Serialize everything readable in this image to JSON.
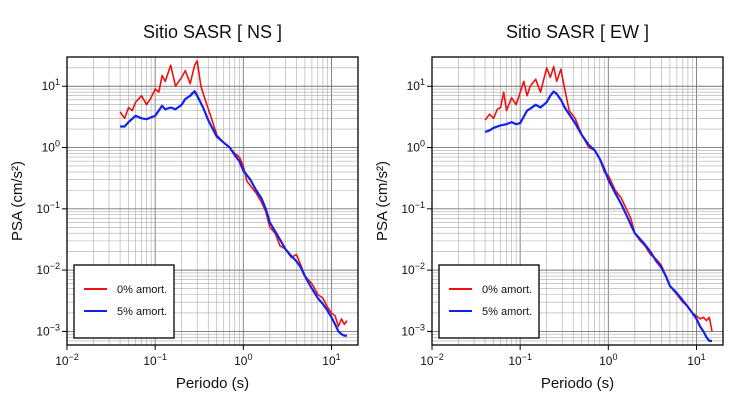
{
  "chart_data": [
    {
      "type": "line",
      "title": "Sitio SASR [ NS ]",
      "xlabel": "Periodo (s)",
      "ylabel": "PSA (cm/s²)",
      "x_scale": "log",
      "y_scale": "log",
      "xlim": [
        0.01,
        20
      ],
      "ylim": [
        0.0006,
        30
      ],
      "x_ticks": [
        {
          "value": 0.01,
          "base": "10",
          "exp": "−2"
        },
        {
          "value": 0.1,
          "base": "10",
          "exp": "−1"
        },
        {
          "value": 1,
          "base": "10",
          "exp": "0"
        },
        {
          "value": 10,
          "base": "10",
          "exp": "1"
        }
      ],
      "y_ticks": [
        {
          "value": 0.001,
          "base": "10",
          "exp": "−3"
        },
        {
          "value": 0.01,
          "base": "10",
          "exp": "−2"
        },
        {
          "value": 0.1,
          "base": "10",
          "exp": "−1"
        },
        {
          "value": 1,
          "base": "10",
          "exp": "0"
        },
        {
          "value": 10,
          "base": "10",
          "exp": "1"
        }
      ],
      "grid": true,
      "legend_position": "bottom-left",
      "series": [
        {
          "name": "0% amort.",
          "color": "#ee1111",
          "points": [
            [
              0.04,
              3.8
            ],
            [
              0.045,
              3.0
            ],
            [
              0.05,
              4.5
            ],
            [
              0.055,
              4.0
            ],
            [
              0.06,
              5.5
            ],
            [
              0.07,
              7.0
            ],
            [
              0.08,
              5.0
            ],
            [
              0.09,
              6.5
            ],
            [
              0.1,
              9.0
            ],
            [
              0.11,
              8.0
            ],
            [
              0.12,
              15.0
            ],
            [
              0.13,
              12.0
            ],
            [
              0.15,
              22.0
            ],
            [
              0.17,
              10.0
            ],
            [
              0.2,
              14.0
            ],
            [
              0.22,
              18.0
            ],
            [
              0.25,
              11.0
            ],
            [
              0.28,
              22.0
            ],
            [
              0.3,
              26.0
            ],
            [
              0.33,
              10.0
            ],
            [
              0.37,
              6.0
            ],
            [
              0.42,
              3.5
            ],
            [
              0.5,
              1.6
            ],
            [
              0.6,
              1.2
            ],
            [
              0.7,
              1.0
            ],
            [
              0.8,
              0.8
            ],
            [
              0.9,
              0.7
            ],
            [
              1.0,
              0.5
            ],
            [
              1.1,
              0.28
            ],
            [
              1.2,
              0.24
            ],
            [
              1.4,
              0.18
            ],
            [
              1.6,
              0.13
            ],
            [
              1.8,
              0.09
            ],
            [
              2.0,
              0.05
            ],
            [
              2.3,
              0.04
            ],
            [
              2.6,
              0.025
            ],
            [
              3.0,
              0.022
            ],
            [
              3.5,
              0.016
            ],
            [
              4.0,
              0.018
            ],
            [
              4.5,
              0.012
            ],
            [
              5.0,
              0.008
            ],
            [
              6.0,
              0.006
            ],
            [
              7.0,
              0.004
            ],
            [
              8.0,
              0.0035
            ],
            [
              9.0,
              0.0025
            ],
            [
              10.0,
              0.002
            ],
            [
              11.0,
              0.0018
            ],
            [
              12.0,
              0.0012
            ],
            [
              13.0,
              0.0016
            ],
            [
              14.0,
              0.0013
            ],
            [
              15.0,
              0.0015
            ]
          ]
        },
        {
          "name": "5% amort.",
          "color": "#1122ee",
          "points": [
            [
              0.04,
              2.2
            ],
            [
              0.045,
              2.2
            ],
            [
              0.05,
              2.6
            ],
            [
              0.06,
              3.3
            ],
            [
              0.07,
              3.0
            ],
            [
              0.08,
              2.9
            ],
            [
              0.09,
              3.1
            ],
            [
              0.1,
              3.3
            ],
            [
              0.11,
              4.0
            ],
            [
              0.12,
              4.8
            ],
            [
              0.13,
              4.2
            ],
            [
              0.15,
              4.5
            ],
            [
              0.17,
              4.2
            ],
            [
              0.2,
              5.0
            ],
            [
              0.22,
              6.2
            ],
            [
              0.25,
              7.0
            ],
            [
              0.28,
              8.3
            ],
            [
              0.3,
              7.0
            ],
            [
              0.35,
              4.5
            ],
            [
              0.4,
              2.8
            ],
            [
              0.5,
              1.5
            ],
            [
              0.6,
              1.2
            ],
            [
              0.7,
              1.0
            ],
            [
              0.8,
              0.75
            ],
            [
              0.9,
              0.6
            ],
            [
              1.0,
              0.42
            ],
            [
              1.2,
              0.3
            ],
            [
              1.4,
              0.2
            ],
            [
              1.6,
              0.15
            ],
            [
              1.8,
              0.1
            ],
            [
              2.0,
              0.06
            ],
            [
              2.5,
              0.035
            ],
            [
              3.0,
              0.022
            ],
            [
              3.5,
              0.017
            ],
            [
              4.0,
              0.014
            ],
            [
              4.5,
              0.011
            ],
            [
              5.0,
              0.008
            ],
            [
              6.0,
              0.005
            ],
            [
              7.0,
              0.0035
            ],
            [
              8.0,
              0.0028
            ],
            [
              9.0,
              0.0022
            ],
            [
              10.0,
              0.0017
            ],
            [
              11.0,
              0.0013
            ],
            [
              12.0,
              0.001
            ],
            [
              13.0,
              0.0009
            ],
            [
              14.0,
              0.00085
            ],
            [
              15.0,
              0.00085
            ]
          ]
        }
      ]
    },
    {
      "type": "line",
      "title": "Sitio SASR [ EW ]",
      "xlabel": "Periodo (s)",
      "ylabel": "PSA (cm/s²)",
      "x_scale": "log",
      "y_scale": "log",
      "xlim": [
        0.01,
        20
      ],
      "ylim": [
        0.0006,
        30
      ],
      "x_ticks": [
        {
          "value": 0.01,
          "base": "10",
          "exp": "−2"
        },
        {
          "value": 0.1,
          "base": "10",
          "exp": "−1"
        },
        {
          "value": 1,
          "base": "10",
          "exp": "0"
        },
        {
          "value": 10,
          "base": "10",
          "exp": "1"
        }
      ],
      "y_ticks": [
        {
          "value": 0.001,
          "base": "10",
          "exp": "−3"
        },
        {
          "value": 0.01,
          "base": "10",
          "exp": "−2"
        },
        {
          "value": 0.1,
          "base": "10",
          "exp": "−1"
        },
        {
          "value": 1,
          "base": "10",
          "exp": "0"
        },
        {
          "value": 10,
          "base": "10",
          "exp": "1"
        }
      ],
      "grid": true,
      "legend_position": "bottom-left",
      "series": [
        {
          "name": "0% amort.",
          "color": "#ee1111",
          "points": [
            [
              0.04,
              2.8
            ],
            [
              0.045,
              3.5
            ],
            [
              0.05,
              3.0
            ],
            [
              0.055,
              4.2
            ],
            [
              0.06,
              4.5
            ],
            [
              0.065,
              8.0
            ],
            [
              0.07,
              4.0
            ],
            [
              0.08,
              6.5
            ],
            [
              0.09,
              5.0
            ],
            [
              0.1,
              8.0
            ],
            [
              0.11,
              12.0
            ],
            [
              0.12,
              7.0
            ],
            [
              0.13,
              10.0
            ],
            [
              0.15,
              13.0
            ],
            [
              0.17,
              8.0
            ],
            [
              0.2,
              20.0
            ],
            [
              0.22,
              14.0
            ],
            [
              0.24,
              21.0
            ],
            [
              0.26,
              12.0
            ],
            [
              0.29,
              19.0
            ],
            [
              0.32,
              9.0
            ],
            [
              0.36,
              4.0
            ],
            [
              0.42,
              3.0
            ],
            [
              0.5,
              1.6
            ],
            [
              0.6,
              1.0
            ],
            [
              0.7,
              0.9
            ],
            [
              0.8,
              0.65
            ],
            [
              0.9,
              0.4
            ],
            [
              1.0,
              0.35
            ],
            [
              1.2,
              0.2
            ],
            [
              1.4,
              0.15
            ],
            [
              1.6,
              0.1
            ],
            [
              1.8,
              0.07
            ],
            [
              2.0,
              0.04
            ],
            [
              2.3,
              0.03
            ],
            [
              2.6,
              0.025
            ],
            [
              3.0,
              0.018
            ],
            [
              3.5,
              0.015
            ],
            [
              4.0,
              0.012
            ],
            [
              4.5,
              0.008
            ],
            [
              5.0,
              0.0055
            ],
            [
              6.0,
              0.004
            ],
            [
              7.0,
              0.003
            ],
            [
              8.0,
              0.0026
            ],
            [
              9.0,
              0.002
            ],
            [
              10.0,
              0.0018
            ],
            [
              11.0,
              0.0016
            ],
            [
              12.0,
              0.0017
            ],
            [
              13.0,
              0.0015
            ],
            [
              14.0,
              0.0017
            ],
            [
              15.0,
              0.001
            ]
          ]
        },
        {
          "name": "5% amort.",
          "color": "#1122ee",
          "points": [
            [
              0.04,
              1.8
            ],
            [
              0.045,
              1.9
            ],
            [
              0.05,
              2.1
            ],
            [
              0.06,
              2.3
            ],
            [
              0.07,
              2.4
            ],
            [
              0.08,
              2.6
            ],
            [
              0.09,
              2.4
            ],
            [
              0.1,
              2.5
            ],
            [
              0.11,
              3.2
            ],
            [
              0.12,
              4.0
            ],
            [
              0.13,
              4.3
            ],
            [
              0.15,
              5.0
            ],
            [
              0.17,
              4.5
            ],
            [
              0.2,
              5.5
            ],
            [
              0.22,
              7.0
            ],
            [
              0.24,
              8.2
            ],
            [
              0.26,
              7.5
            ],
            [
              0.29,
              6.0
            ],
            [
              0.32,
              4.5
            ],
            [
              0.36,
              3.5
            ],
            [
              0.42,
              2.5
            ],
            [
              0.5,
              1.6
            ],
            [
              0.6,
              1.1
            ],
            [
              0.7,
              0.9
            ],
            [
              0.8,
              0.65
            ],
            [
              0.9,
              0.45
            ],
            [
              1.0,
              0.3
            ],
            [
              1.2,
              0.18
            ],
            [
              1.4,
              0.12
            ],
            [
              1.6,
              0.08
            ],
            [
              1.8,
              0.055
            ],
            [
              2.0,
              0.04
            ],
            [
              2.5,
              0.028
            ],
            [
              3.0,
              0.02
            ],
            [
              3.5,
              0.014
            ],
            [
              4.0,
              0.011
            ],
            [
              4.5,
              0.008
            ],
            [
              5.0,
              0.0055
            ],
            [
              6.0,
              0.0042
            ],
            [
              7.0,
              0.0032
            ],
            [
              8.0,
              0.0025
            ],
            [
              9.0,
              0.002
            ],
            [
              10.0,
              0.0016
            ],
            [
              11.0,
              0.0012
            ],
            [
              12.0,
              0.001
            ],
            [
              13.0,
              0.0008
            ],
            [
              14.0,
              0.0007
            ],
            [
              15.0,
              0.0007
            ]
          ]
        }
      ]
    }
  ]
}
